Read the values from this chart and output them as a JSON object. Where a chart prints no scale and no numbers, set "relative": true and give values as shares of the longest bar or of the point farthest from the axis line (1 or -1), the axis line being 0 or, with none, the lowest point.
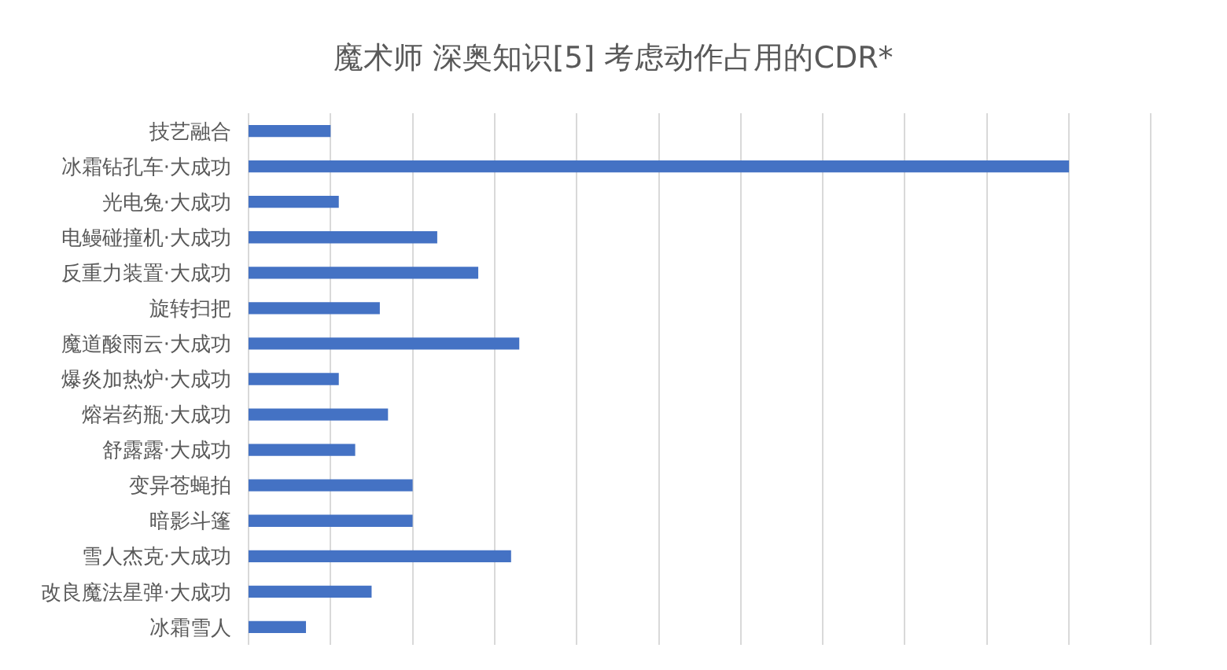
{
  "chart_data": {
    "type": "bar",
    "title": "魔术师 深奥知识[5] 考虑动作占用的CDR*",
    "orientation": "horizontal",
    "relative": true,
    "grid": "x",
    "color": "#4472c4",
    "categories": [
      "技艺融合",
      "冰霜钻孔车·大成功",
      "光电兔·大成功",
      "电鳗碰撞机·大成功",
      "反重力装置·大成功",
      "旋转扫把",
      "魔道酸雨云·大成功",
      "爆炎加热炉·大成功",
      "熔岩药瓶·大成功",
      "舒露露·大成功",
      "变异苍蝇拍",
      "暗影斗篷",
      "雪人杰克·大成功",
      "改良魔法星弹·大成功",
      "冰霜雪人"
    ],
    "values": [
      0.1,
      1,
      0.11,
      0.23,
      0.28,
      0.16,
      0.33,
      0.11,
      0.17,
      0.13,
      0.2,
      0.2,
      0.32,
      0.15,
      0.07
    ]
  }
}
